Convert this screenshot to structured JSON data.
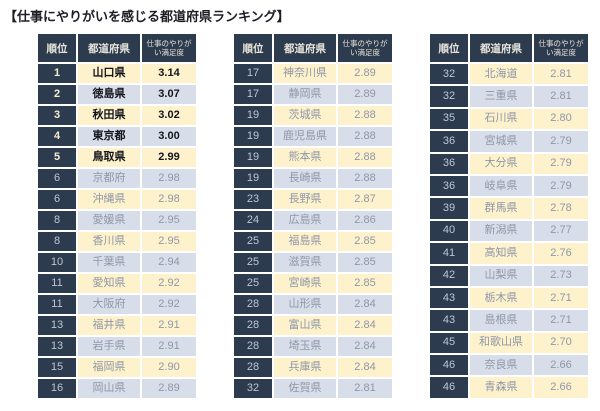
{
  "title": "【仕事にやりがいを感じる都道府県ランキング】",
  "columns": {
    "rank": "順位",
    "prefecture": "都道府県",
    "score": "仕事のやりがい満足度",
    "score_line1": "仕事のやりが",
    "score_line2": "い満足度"
  },
  "colors": {
    "header_bg": "#2c3b4e",
    "header_text": "#e7e3da",
    "row_odd_bg": "#fdf2cc",
    "row_even_bg": "#d8dee9",
    "top5_text": "#14161d",
    "top5_rank_text": "#f6eccf",
    "muted_text": "#8f96a8",
    "rank_text": "#bfc6d4",
    "border": "#ffffff"
  },
  "tables": [
    {
      "rows": [
        {
          "rank": "1",
          "pref": "山口県",
          "score": "3.14",
          "top": true
        },
        {
          "rank": "2",
          "pref": "徳島県",
          "score": "3.07",
          "top": true
        },
        {
          "rank": "3",
          "pref": "秋田県",
          "score": "3.02",
          "top": true
        },
        {
          "rank": "4",
          "pref": "東京都",
          "score": "3.00",
          "top": true
        },
        {
          "rank": "5",
          "pref": "鳥取県",
          "score": "2.99",
          "top": true
        },
        {
          "rank": "6",
          "pref": "京都府",
          "score": "2.98",
          "top": false
        },
        {
          "rank": "6",
          "pref": "沖縄県",
          "score": "2.98",
          "top": false
        },
        {
          "rank": "8",
          "pref": "愛媛県",
          "score": "2.95",
          "top": false
        },
        {
          "rank": "8",
          "pref": "香川県",
          "score": "2.95",
          "top": false
        },
        {
          "rank": "10",
          "pref": "千葉県",
          "score": "2.94",
          "top": false
        },
        {
          "rank": "11",
          "pref": "愛知県",
          "score": "2.92",
          "top": false
        },
        {
          "rank": "11",
          "pref": "大阪府",
          "score": "2.92",
          "top": false
        },
        {
          "rank": "13",
          "pref": "福井県",
          "score": "2.91",
          "top": false
        },
        {
          "rank": "13",
          "pref": "岩手県",
          "score": "2.91",
          "top": false
        },
        {
          "rank": "15",
          "pref": "福岡県",
          "score": "2.90",
          "top": false
        },
        {
          "rank": "16",
          "pref": "岡山県",
          "score": "2.89",
          "top": false
        }
      ]
    },
    {
      "rows": [
        {
          "rank": "17",
          "pref": "神奈川県",
          "score": "2.89",
          "top": false
        },
        {
          "rank": "17",
          "pref": "静岡県",
          "score": "2.89",
          "top": false
        },
        {
          "rank": "19",
          "pref": "茨城県",
          "score": "2.88",
          "top": false
        },
        {
          "rank": "19",
          "pref": "鹿児島県",
          "score": "2.88",
          "top": false
        },
        {
          "rank": "19",
          "pref": "熊本県",
          "score": "2.88",
          "top": false
        },
        {
          "rank": "19",
          "pref": "長崎県",
          "score": "2.88",
          "top": false
        },
        {
          "rank": "23",
          "pref": "長野県",
          "score": "2.87",
          "top": false
        },
        {
          "rank": "24",
          "pref": "広島県",
          "score": "2.86",
          "top": false
        },
        {
          "rank": "25",
          "pref": "福島県",
          "score": "2.85",
          "top": false
        },
        {
          "rank": "25",
          "pref": "滋賀県",
          "score": "2.85",
          "top": false
        },
        {
          "rank": "25",
          "pref": "宮崎県",
          "score": "2.85",
          "top": false
        },
        {
          "rank": "28",
          "pref": "山形県",
          "score": "2.84",
          "top": false
        },
        {
          "rank": "28",
          "pref": "富山県",
          "score": "2.84",
          "top": false
        },
        {
          "rank": "28",
          "pref": "埼玉県",
          "score": "2.84",
          "top": false
        },
        {
          "rank": "28",
          "pref": "兵庫県",
          "score": "2.84",
          "top": false
        },
        {
          "rank": "32",
          "pref": "佐賀県",
          "score": "2.81",
          "top": false
        }
      ]
    },
    {
      "rows": [
        {
          "rank": "32",
          "pref": "北海道",
          "score": "2.81",
          "top": false
        },
        {
          "rank": "32",
          "pref": "三重県",
          "score": "2.81",
          "top": false
        },
        {
          "rank": "35",
          "pref": "石川県",
          "score": "2.80",
          "top": false
        },
        {
          "rank": "36",
          "pref": "宮城県",
          "score": "2.79",
          "top": false
        },
        {
          "rank": "36",
          "pref": "大分県",
          "score": "2.79",
          "top": false
        },
        {
          "rank": "36",
          "pref": "岐阜県",
          "score": "2.79",
          "top": false
        },
        {
          "rank": "39",
          "pref": "群馬県",
          "score": "2.78",
          "top": false
        },
        {
          "rank": "40",
          "pref": "新潟県",
          "score": "2.77",
          "top": false
        },
        {
          "rank": "41",
          "pref": "高知県",
          "score": "2.76",
          "top": false
        },
        {
          "rank": "42",
          "pref": "山梨県",
          "score": "2.73",
          "top": false
        },
        {
          "rank": "43",
          "pref": "栃木県",
          "score": "2.71",
          "top": false
        },
        {
          "rank": "43",
          "pref": "島根県",
          "score": "2.71",
          "top": false
        },
        {
          "rank": "45",
          "pref": "和歌山県",
          "score": "2.70",
          "top": false
        },
        {
          "rank": "46",
          "pref": "奈良県",
          "score": "2.66",
          "top": false
        },
        {
          "rank": "46",
          "pref": "青森県",
          "score": "2.66",
          "top": false
        }
      ]
    }
  ],
  "chart_data": {
    "type": "table",
    "title": "【仕事にやりがいを感じる都道府県ランキング】",
    "columns": [
      "順位",
      "都道府県",
      "仕事のやりがい満足度"
    ],
    "rows": [
      [
        1,
        "山口県",
        3.14
      ],
      [
        2,
        "徳島県",
        3.07
      ],
      [
        3,
        "秋田県",
        3.02
      ],
      [
        4,
        "東京都",
        3.0
      ],
      [
        5,
        "鳥取県",
        2.99
      ],
      [
        6,
        "京都府",
        2.98
      ],
      [
        6,
        "沖縄県",
        2.98
      ],
      [
        8,
        "愛媛県",
        2.95
      ],
      [
        8,
        "香川県",
        2.95
      ],
      [
        10,
        "千葉県",
        2.94
      ],
      [
        11,
        "愛知県",
        2.92
      ],
      [
        11,
        "大阪府",
        2.92
      ],
      [
        13,
        "福井県",
        2.91
      ],
      [
        13,
        "岩手県",
        2.91
      ],
      [
        15,
        "福岡県",
        2.9
      ],
      [
        16,
        "岡山県",
        2.89
      ],
      [
        17,
        "神奈川県",
        2.89
      ],
      [
        17,
        "静岡県",
        2.89
      ],
      [
        19,
        "茨城県",
        2.88
      ],
      [
        19,
        "鹿児島県",
        2.88
      ],
      [
        19,
        "熊本県",
        2.88
      ],
      [
        19,
        "長崎県",
        2.88
      ],
      [
        23,
        "長野県",
        2.87
      ],
      [
        24,
        "広島県",
        2.86
      ],
      [
        25,
        "福島県",
        2.85
      ],
      [
        25,
        "滋賀県",
        2.85
      ],
      [
        25,
        "宮崎県",
        2.85
      ],
      [
        28,
        "山形県",
        2.84
      ],
      [
        28,
        "富山県",
        2.84
      ],
      [
        28,
        "埼玉県",
        2.84
      ],
      [
        28,
        "兵庫県",
        2.84
      ],
      [
        32,
        "佐賀県",
        2.81
      ],
      [
        32,
        "北海道",
        2.81
      ],
      [
        32,
        "三重県",
        2.81
      ],
      [
        35,
        "石川県",
        2.8
      ],
      [
        36,
        "宮城県",
        2.79
      ],
      [
        36,
        "大分県",
        2.79
      ],
      [
        36,
        "岐阜県",
        2.79
      ],
      [
        39,
        "群馬県",
        2.78
      ],
      [
        40,
        "新潟県",
        2.77
      ],
      [
        41,
        "高知県",
        2.76
      ],
      [
        42,
        "山梨県",
        2.73
      ],
      [
        43,
        "栃木県",
        2.71
      ],
      [
        43,
        "島根県",
        2.71
      ],
      [
        45,
        "和歌山県",
        2.7
      ],
      [
        46,
        "奈良県",
        2.66
      ],
      [
        46,
        "青森県",
        2.66
      ]
    ],
    "notes": "Top 5 rows visually emphasized (bold dark text, gold rank numerals). Rows alternate cream/blue-gray backgrounds. Split across 3 side-by-side tables of 16/16/15 rows."
  }
}
